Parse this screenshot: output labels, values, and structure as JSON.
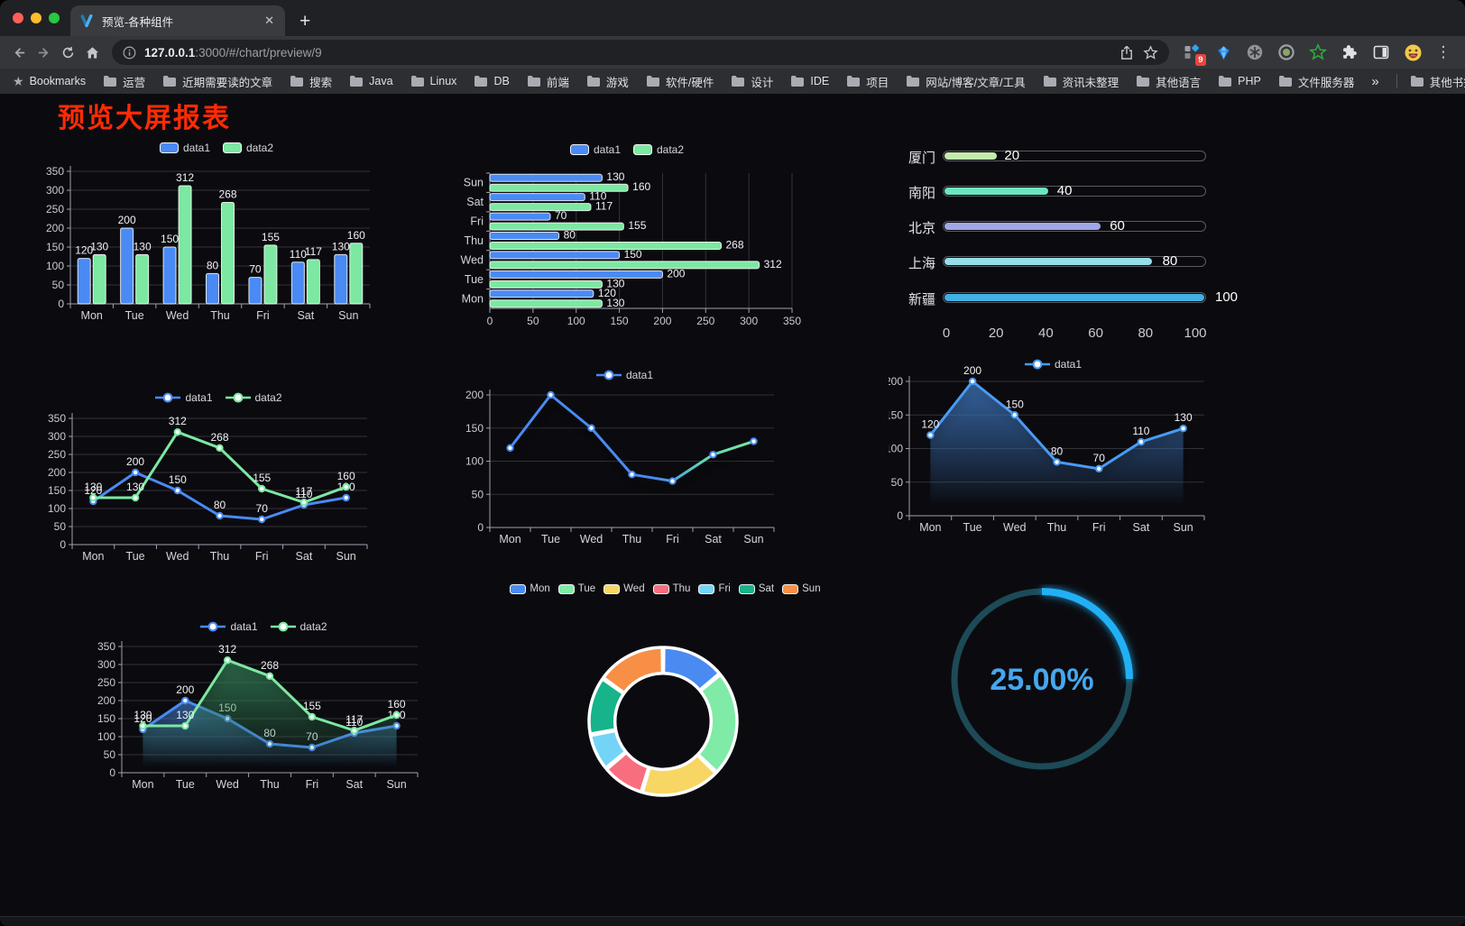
{
  "browser": {
    "tab_title": "预览-各种组件",
    "url_host": "127.0.0.1",
    "url_rest": ":3000/#/chart/preview/9",
    "bookmarks_label": "Bookmarks",
    "folders": [
      "运营",
      "近期需要读的文章",
      "搜索",
      "Java",
      "Linux",
      "DB",
      "前端",
      "游戏",
      "软件/硬件",
      "设计",
      "IDE",
      "项目",
      "网站/博客/文章/工具",
      "资讯未整理",
      "其他语言",
      "PHP",
      "文件服务器"
    ],
    "overflow": "»",
    "other_bookmarks": "其他书签",
    "ext_badge": "9"
  },
  "page": {
    "title": "预览大屏报表",
    "title_color": "#ff2b05",
    "background": "#0b0b0f"
  },
  "chart_data": [
    {
      "id": "bar-grouped",
      "type": "bar",
      "orientation": "vertical",
      "categories": [
        "Mon",
        "Tue",
        "Wed",
        "Thu",
        "Fri",
        "Sat",
        "Sun"
      ],
      "series": [
        {
          "name": "data1",
          "color": "#4a8af4",
          "values": [
            120,
            200,
            150,
            80,
            70,
            110,
            130
          ]
        },
        {
          "name": "data2",
          "color": "#7ce8a2",
          "values": [
            130,
            130,
            312,
            268,
            155,
            117,
            160
          ]
        }
      ],
      "ylim": [
        0,
        350
      ],
      "ytick": 50,
      "legend_position": "top",
      "grid": true,
      "show_labels": true
    },
    {
      "id": "bar-horizontal",
      "type": "bar",
      "orientation": "horizontal",
      "categories": [
        "Mon",
        "Tue",
        "Wed",
        "Thu",
        "Fri",
        "Sat",
        "Sun"
      ],
      "series": [
        {
          "name": "data1",
          "color": "#4a8af4",
          "values": [
            120,
            200,
            150,
            80,
            70,
            110,
            130
          ]
        },
        {
          "name": "data2",
          "color": "#7ce8a2",
          "values": [
            130,
            130,
            312,
            268,
            155,
            117,
            160
          ]
        }
      ],
      "xlim": [
        0,
        350
      ],
      "xtick": 50,
      "legend_position": "top",
      "grid": true,
      "show_labels": true
    },
    {
      "id": "city-progress",
      "type": "bar",
      "orientation": "progress",
      "items": [
        {
          "label": "厦门",
          "value": 20,
          "color": "#c4ebad"
        },
        {
          "label": "南阳",
          "value": 40,
          "color": "#6be6c1"
        },
        {
          "label": "北京",
          "value": 60,
          "color": "#a0a7e6"
        },
        {
          "label": "上海",
          "value": 80,
          "color": "#96dee8"
        },
        {
          "label": "新疆",
          "value": 100,
          "color": "#3fb1e3"
        }
      ],
      "xlim": [
        0,
        100
      ],
      "xticks": [
        0,
        20,
        40,
        60,
        80,
        100
      ]
    },
    {
      "id": "line-dual",
      "type": "line",
      "categories": [
        "Mon",
        "Tue",
        "Wed",
        "Thu",
        "Fri",
        "Sat",
        "Sun"
      ],
      "series": [
        {
          "name": "data1",
          "color": "#4a8af4",
          "values": [
            120,
            200,
            150,
            80,
            70,
            110,
            130
          ]
        },
        {
          "name": "data2",
          "color": "#7ce8a2",
          "values": [
            130,
            130,
            312,
            268,
            155,
            117,
            160
          ]
        }
      ],
      "ylim": [
        0,
        350
      ],
      "ytick": 50,
      "legend_position": "top",
      "grid": true,
      "show_labels": true
    },
    {
      "id": "line-gradient",
      "type": "line",
      "categories": [
        "Mon",
        "Tue",
        "Wed",
        "Thu",
        "Fri",
        "Sat",
        "Sun"
      ],
      "series": [
        {
          "name": "data1",
          "color": "#4a8af4",
          "gradient": [
            "#4a8af4",
            "#4a8af4",
            "#62d9b4",
            "#7ce8a2"
          ],
          "values": [
            120,
            200,
            150,
            80,
            70,
            110,
            130
          ]
        }
      ],
      "ylim": [
        0,
        200
      ],
      "ytick": 50,
      "legend_position": "top",
      "grid": true,
      "show_labels": false,
      "shadow": true
    },
    {
      "id": "area-single",
      "type": "area",
      "categories": [
        "Mon",
        "Tue",
        "Wed",
        "Thu",
        "Fri",
        "Sat",
        "Sun"
      ],
      "series": [
        {
          "name": "data1",
          "color": "#4a9af5",
          "area": [
            "rgba(66,125,200,0.7)",
            "rgba(66,125,200,0)"
          ],
          "values": [
            120,
            200,
            150,
            80,
            70,
            110,
            130
          ]
        }
      ],
      "ylim": [
        0,
        200
      ],
      "ytick": 50,
      "legend_position": "top",
      "grid": true,
      "show_labels": true,
      "shadow": true
    },
    {
      "id": "area-dual",
      "type": "area",
      "categories": [
        "Mon",
        "Tue",
        "Wed",
        "Thu",
        "Fri",
        "Sat",
        "Sun"
      ],
      "series": [
        {
          "name": "data1",
          "color": "#4a8af4",
          "area": [
            "rgba(66,125,200,0.65)",
            "rgba(66,125,200,0)"
          ],
          "values": [
            120,
            200,
            150,
            80,
            70,
            110,
            130
          ]
        },
        {
          "name": "data2",
          "color": "#7ce8a2",
          "area": [
            "rgba(60,150,100,0.6)",
            "rgba(60,150,100,0)"
          ],
          "values": [
            130,
            130,
            312,
            268,
            155,
            117,
            160
          ]
        }
      ],
      "ylim": [
        0,
        350
      ],
      "ytick": 50,
      "legend_position": "top",
      "grid": true,
      "show_labels": true,
      "shadow": true
    },
    {
      "id": "week-donut",
      "type": "pie",
      "items": [
        {
          "name": "Mon",
          "value": 120,
          "color": "#4a8bf2"
        },
        {
          "name": "Tue",
          "value": 200,
          "color": "#7feba7"
        },
        {
          "name": "Wed",
          "value": 150,
          "color": "#f7d664"
        },
        {
          "name": "Thu",
          "value": 80,
          "color": "#f96e7e"
        },
        {
          "name": "Fri",
          "value": 70,
          "color": "#74d4f7"
        },
        {
          "name": "Sat",
          "value": 110,
          "color": "#17b38a"
        },
        {
          "name": "Sun",
          "value": 130,
          "color": "#f79046"
        }
      ],
      "inner_radius_ratio": 0.65,
      "legend_position": "top"
    },
    {
      "id": "progress-gauge",
      "type": "gauge",
      "value": 25,
      "display": "25.00%",
      "color": "#23b0f5",
      "track_color": "#1d4a57",
      "text_color": "#46a7ee"
    }
  ]
}
